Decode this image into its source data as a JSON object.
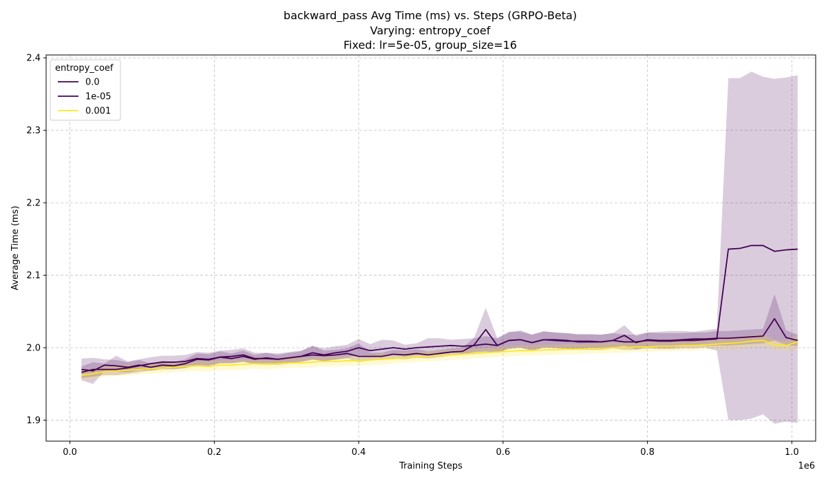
{
  "chart_data": {
    "type": "line",
    "title": [
      "backward_pass Avg Time (ms) vs. Steps (GRPO-Beta)",
      "Varying: entropy_coef",
      "Fixed: lr=5e-05, group_size=16"
    ],
    "xlabel": "Training Steps",
    "ylabel": "Average Time (ms)",
    "x_offset_label": "1e6",
    "xlim": [
      -0.033,
      1.033
    ],
    "ylim": [
      1.871,
      2.404
    ],
    "xticks": [
      0.0,
      0.2,
      0.4,
      0.6,
      0.8,
      1.0
    ],
    "xtick_labels": [
      "0.0",
      "0.2",
      "0.4",
      "0.6",
      "0.8",
      "1.0"
    ],
    "yticks": [
      1.9,
      2.0,
      2.1,
      2.2,
      2.3,
      2.4
    ],
    "ytick_labels": [
      "1.9",
      "2.0",
      "2.1",
      "2.2",
      "2.3",
      "2.4"
    ],
    "grid": true,
    "legend": {
      "title": "entropy_coef",
      "placement": "top-left"
    },
    "x": [
      0.016,
      0.032,
      0.048,
      0.064,
      0.08,
      0.096,
      0.112,
      0.128,
      0.144,
      0.16,
      0.176,
      0.192,
      0.208,
      0.224,
      0.24,
      0.256,
      0.272,
      0.288,
      0.304,
      0.32,
      0.336,
      0.352,
      0.368,
      0.384,
      0.4,
      0.416,
      0.432,
      0.448,
      0.464,
      0.48,
      0.496,
      0.512,
      0.528,
      0.544,
      0.56,
      0.576,
      0.592,
      0.608,
      0.624,
      0.64,
      0.656,
      0.672,
      0.688,
      0.704,
      0.72,
      0.736,
      0.752,
      0.768,
      0.784,
      0.8,
      0.816,
      0.832,
      0.848,
      0.864,
      0.88,
      0.896,
      0.912,
      0.928,
      0.944,
      0.96,
      0.976,
      0.992,
      1.008
    ],
    "series": [
      {
        "name": "0.0",
        "color": "#440154",
        "values": [
          1.97,
          1.968,
          1.976,
          1.975,
          1.973,
          1.976,
          1.973,
          1.976,
          1.975,
          1.978,
          1.984,
          1.983,
          1.987,
          1.985,
          1.988,
          1.984,
          1.986,
          1.984,
          1.986,
          1.988,
          1.99,
          1.989,
          1.99,
          1.992,
          1.988,
          1.988,
          1.988,
          1.991,
          1.99,
          1.992,
          1.99,
          1.992,
          1.994,
          1.995,
          2.004,
          2.025,
          2.003,
          2.01,
          2.011,
          2.007,
          2.011,
          2.01,
          2.009,
          2.009,
          2.009,
          2.008,
          2.01,
          2.017,
          2.007,
          2.011,
          2.01,
          2.01,
          2.011,
          2.012,
          2.012,
          2.013,
          2.013,
          2.014,
          2.015,
          2.016,
          2.04,
          2.014,
          2.01
        ],
        "lower": [
          1.955,
          1.95,
          1.968,
          1.967,
          1.966,
          1.969,
          1.968,
          1.97,
          1.97,
          1.972,
          1.976,
          1.975,
          1.979,
          1.978,
          1.98,
          1.978,
          1.979,
          1.978,
          1.979,
          1.981,
          1.983,
          1.982,
          1.983,
          1.985,
          1.98,
          1.983,
          1.983,
          1.985,
          1.984,
          1.986,
          1.985,
          1.987,
          1.989,
          1.99,
          1.994,
          1.995,
          1.993,
          1.998,
          2.0,
          1.996,
          2.0,
          1.999,
          1.998,
          1.999,
          1.999,
          1.998,
          2.0,
          2.003,
          1.998,
          2.001,
          2.0,
          2.0,
          2.002,
          2.003,
          2.003,
          2.003,
          2.003,
          2.004,
          2.005,
          2.006,
          2.01,
          2.004,
          2.002
        ],
        "upper": [
          1.985,
          1.986,
          1.984,
          1.983,
          1.98,
          1.983,
          1.978,
          1.982,
          1.98,
          1.984,
          1.992,
          1.991,
          1.995,
          1.992,
          1.996,
          1.99,
          1.993,
          1.99,
          1.993,
          1.995,
          2.003,
          1.996,
          1.997,
          1.999,
          2.006,
          1.993,
          1.993,
          1.997,
          1.996,
          1.998,
          1.995,
          1.997,
          1.999,
          2.0,
          2.014,
          2.055,
          2.013,
          2.022,
          2.022,
          2.018,
          2.022,
          2.021,
          2.02,
          2.019,
          2.019,
          2.018,
          2.02,
          2.031,
          2.016,
          2.021,
          2.02,
          2.02,
          2.02,
          2.021,
          2.021,
          2.023,
          2.023,
          2.024,
          2.025,
          2.026,
          2.074,
          2.024,
          2.018
        ]
      },
      {
        "name": "1e-05",
        "color": "#440154",
        "values": [
          1.966,
          1.97,
          1.97,
          1.97,
          1.972,
          1.975,
          1.978,
          1.98,
          1.98,
          1.981,
          1.985,
          1.984,
          1.987,
          1.988,
          1.99,
          1.985,
          1.985,
          1.984,
          1.986,
          1.988,
          1.993,
          1.99,
          1.993,
          1.995,
          2.0,
          1.996,
          1.998,
          2.0,
          1.998,
          2.0,
          2.001,
          2.002,
          2.003,
          2.002,
          2.003,
          2.005,
          2.003,
          2.01,
          2.011,
          2.007,
          2.011,
          2.011,
          2.01,
          2.008,
          2.008,
          2.008,
          2.01,
          2.008,
          2.008,
          2.01,
          2.009,
          2.009,
          2.01,
          2.01,
          2.011,
          2.012,
          2.136,
          2.137,
          2.141,
          2.141,
          2.133,
          2.135,
          2.136
        ],
        "lower": [
          1.958,
          1.96,
          1.962,
          1.962,
          1.964,
          1.966,
          1.969,
          1.971,
          1.971,
          1.972,
          1.976,
          1.975,
          1.978,
          1.979,
          1.981,
          1.977,
          1.977,
          1.976,
          1.978,
          1.98,
          1.984,
          1.981,
          1.984,
          1.986,
          1.99,
          1.987,
          1.989,
          1.99,
          1.988,
          1.99,
          1.991,
          1.992,
          1.993,
          1.992,
          1.993,
          1.994,
          1.993,
          1.999,
          2.0,
          1.996,
          2.0,
          2.0,
          1.999,
          1.997,
          1.997,
          1.997,
          1.999,
          1.997,
          1.997,
          1.999,
          1.998,
          1.998,
          1.999,
          1.999,
          2.0,
          1.996,
          1.9,
          1.9,
          1.902,
          1.908,
          1.895,
          1.898,
          1.896
        ],
        "upper": [
          1.974,
          1.98,
          1.978,
          1.989,
          1.981,
          1.984,
          1.987,
          1.989,
          1.989,
          1.99,
          1.994,
          1.993,
          1.996,
          1.997,
          1.999,
          1.993,
          1.993,
          1.992,
          1.994,
          1.996,
          2.002,
          1.999,
          2.002,
          2.004,
          2.012,
          2.005,
          2.011,
          2.01,
          2.004,
          2.006,
          2.013,
          2.013,
          2.011,
          2.012,
          2.013,
          2.016,
          2.013,
          2.021,
          2.024,
          2.018,
          2.023,
          2.021,
          2.02,
          2.018,
          2.018,
          2.018,
          2.02,
          2.018,
          2.018,
          2.021,
          2.022,
          2.023,
          2.023,
          2.022,
          2.024,
          2.026,
          2.372,
          2.372,
          2.381,
          2.374,
          2.371,
          2.373,
          2.376
        ]
      },
      {
        "name": "0.001",
        "color": "#fde725",
        "values": [
          1.962,
          1.964,
          1.967,
          1.968,
          1.969,
          1.97,
          1.971,
          1.972,
          1.973,
          1.974,
          1.975,
          1.974,
          1.976,
          1.976,
          1.977,
          1.978,
          1.977,
          1.978,
          1.979,
          1.979,
          1.98,
          1.981,
          1.981,
          1.982,
          1.982,
          1.983,
          1.984,
          1.985,
          1.986,
          1.987,
          1.988,
          1.989,
          1.99,
          1.991,
          1.992,
          1.993,
          1.994,
          1.995,
          1.996,
          1.996,
          1.997,
          1.997,
          1.998,
          1.998,
          1.999,
          1.999,
          2.0,
          2.0,
          2.001,
          2.001,
          2.002,
          2.002,
          2.003,
          2.003,
          2.004,
          2.005,
          2.006,
          2.007,
          2.009,
          2.01,
          2.004,
          2.003,
          2.008
        ],
        "lower": [
          1.955,
          1.957,
          1.96,
          1.961,
          1.962,
          1.963,
          1.964,
          1.965,
          1.966,
          1.967,
          1.968,
          1.967,
          1.969,
          1.969,
          1.97,
          1.971,
          1.97,
          1.971,
          1.972,
          1.972,
          1.973,
          1.974,
          1.974,
          1.975,
          1.975,
          1.976,
          1.976,
          1.978,
          1.979,
          1.98,
          1.981,
          1.982,
          1.983,
          1.984,
          1.985,
          1.986,
          1.987,
          1.988,
          1.989,
          1.989,
          1.99,
          1.99,
          1.991,
          1.991,
          1.992,
          1.992,
          1.993,
          1.993,
          1.994,
          1.994,
          1.995,
          1.995,
          1.996,
          1.996,
          1.997,
          1.998,
          1.998,
          1.999,
          2.001,
          2.002,
          1.997,
          1.996,
          1.999
        ],
        "upper": [
          1.969,
          1.971,
          1.974,
          1.975,
          1.976,
          1.977,
          1.978,
          1.979,
          1.98,
          1.981,
          1.982,
          1.981,
          1.983,
          1.983,
          1.984,
          1.985,
          1.984,
          1.985,
          1.986,
          1.986,
          1.987,
          1.988,
          1.988,
          1.989,
          1.989,
          1.99,
          1.992,
          1.992,
          1.993,
          1.994,
          1.995,
          1.996,
          1.997,
          1.998,
          1.999,
          2.0,
          2.001,
          2.002,
          2.003,
          2.003,
          2.004,
          2.004,
          2.005,
          2.005,
          2.006,
          2.006,
          2.007,
          2.007,
          2.008,
          2.008,
          2.009,
          2.009,
          2.01,
          2.01,
          2.011,
          2.012,
          2.014,
          2.015,
          2.017,
          2.018,
          2.011,
          2.01,
          2.017
        ]
      }
    ]
  }
}
